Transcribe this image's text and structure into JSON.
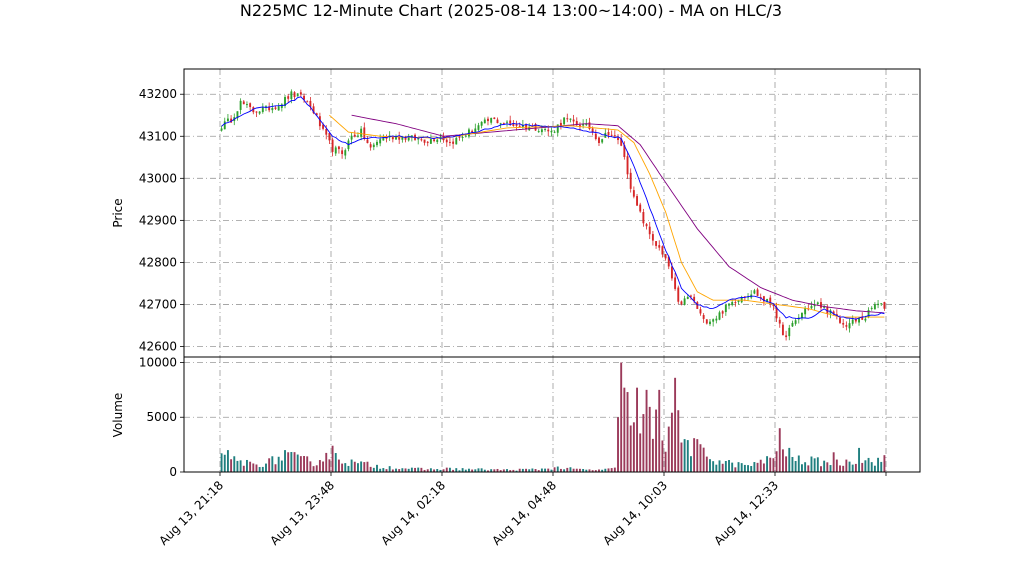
{
  "chart_data": {
    "type": "candlestick",
    "title": "N225MC 12-Minute Chart (2025-08-14 13:00~14:00) - MA on HLC/3",
    "price_panel": {
      "ylabel": "Price",
      "ylim": [
        42575,
        43260
      ],
      "yticks": [
        42600,
        42700,
        42800,
        42900,
        43000,
        43100,
        43200
      ]
    },
    "volume_panel": {
      "ylabel": "Volume",
      "ylim": [
        0,
        10500
      ],
      "yticks": [
        0,
        5000,
        10000
      ]
    },
    "x_axis": {
      "bar_count": 210,
      "tick_indices": [
        0,
        35,
        70,
        105,
        140,
        175,
        210
      ],
      "tick_labels": [
        "Aug 13, 21:18",
        "Aug 13, 23:48",
        "Aug 14, 02:18",
        "Aug 14, 04:48",
        "Aug 14, 10:03",
        "Aug 14, 12:33",
        ""
      ]
    },
    "grid": true,
    "colors": {
      "up": "#2ca02c",
      "down": "#d62728",
      "vol_up": "#1f7f7f",
      "vol_down": "#9b3a5a",
      "ma_short": "#0000ff",
      "ma_mid": "#ffa500",
      "ma_long": "#800080"
    },
    "close_anchors": [
      [
        0,
        43125
      ],
      [
        3,
        43140
      ],
      [
        6,
        43180
      ],
      [
        10,
        43160
      ],
      [
        14,
        43165
      ],
      [
        18,
        43175
      ],
      [
        22,
        43200
      ],
      [
        26,
        43190
      ],
      [
        29,
        43160
      ],
      [
        32,
        43110
      ],
      [
        35,
        43070
      ],
      [
        38,
        43060
      ],
      [
        41,
        43100
      ],
      [
        44,
        43110
      ],
      [
        47,
        43070
      ],
      [
        50,
        43095
      ],
      [
        55,
        43100
      ],
      [
        60,
        43095
      ],
      [
        65,
        43090
      ],
      [
        69,
        43100
      ],
      [
        72,
        43085
      ],
      [
        76,
        43100
      ],
      [
        80,
        43120
      ],
      [
        85,
        43140
      ],
      [
        90,
        43130
      ],
      [
        95,
        43125
      ],
      [
        100,
        43120
      ],
      [
        104,
        43110
      ],
      [
        108,
        43140
      ],
      [
        112,
        43130
      ],
      [
        116,
        43120
      ],
      [
        119,
        43090
      ],
      [
        122,
        43110
      ],
      [
        126,
        43080
      ],
      [
        130,
        42950
      ],
      [
        134,
        42880
      ],
      [
        138,
        42830
      ],
      [
        141,
        42790
      ],
      [
        144,
        42700
      ],
      [
        148,
        42720
      ],
      [
        152,
        42660
      ],
      [
        156,
        42670
      ],
      [
        160,
        42700
      ],
      [
        164,
        42720
      ],
      [
        168,
        42730
      ],
      [
        171,
        42710
      ],
      [
        174,
        42700
      ],
      [
        177,
        42620
      ],
      [
        180,
        42650
      ],
      [
        184,
        42690
      ],
      [
        188,
        42700
      ],
      [
        192,
        42680
      ],
      [
        196,
        42650
      ],
      [
        200,
        42660
      ],
      [
        203,
        42670
      ],
      [
        206,
        42700
      ],
      [
        209,
        42695
      ]
    ],
    "ma_short_anchors": [
      [
        0,
        43125
      ],
      [
        10,
        43165
      ],
      [
        20,
        43175
      ],
      [
        25,
        43195
      ],
      [
        30,
        43150
      ],
      [
        35,
        43100
      ],
      [
        40,
        43080
      ],
      [
        45,
        43095
      ],
      [
        55,
        43100
      ],
      [
        70,
        43095
      ],
      [
        80,
        43110
      ],
      [
        90,
        43130
      ],
      [
        100,
        43125
      ],
      [
        110,
        43120
      ],
      [
        120,
        43105
      ],
      [
        126,
        43095
      ],
      [
        130,
        43030
      ],
      [
        135,
        42930
      ],
      [
        140,
        42830
      ],
      [
        145,
        42740
      ],
      [
        150,
        42700
      ],
      [
        155,
        42690
      ],
      [
        160,
        42710
      ],
      [
        168,
        42720
      ],
      [
        174,
        42700
      ],
      [
        178,
        42670
      ],
      [
        185,
        42665
      ],
      [
        190,
        42690
      ],
      [
        195,
        42670
      ],
      [
        200,
        42665
      ],
      [
        209,
        42680
      ]
    ],
    "ma_mid_anchors": [
      [
        34,
        43150
      ],
      [
        40,
        43110
      ],
      [
        50,
        43100
      ],
      [
        70,
        43095
      ],
      [
        90,
        43120
      ],
      [
        110,
        43125
      ],
      [
        125,
        43115
      ],
      [
        130,
        43085
      ],
      [
        135,
        43010
      ],
      [
        140,
        42920
      ],
      [
        145,
        42800
      ],
      [
        150,
        42730
      ],
      [
        155,
        42710
      ],
      [
        165,
        42710
      ],
      [
        175,
        42700
      ],
      [
        185,
        42690
      ],
      [
        195,
        42670
      ],
      [
        209,
        42670
      ]
    ],
    "ma_long_anchors": [
      [
        41,
        43150
      ],
      [
        55,
        43130
      ],
      [
        70,
        43100
      ],
      [
        85,
        43110
      ],
      [
        100,
        43120
      ],
      [
        115,
        43130
      ],
      [
        125,
        43125
      ],
      [
        132,
        43080
      ],
      [
        140,
        42990
      ],
      [
        150,
        42880
      ],
      [
        160,
        42790
      ],
      [
        170,
        42740
      ],
      [
        180,
        42710
      ],
      [
        190,
        42695
      ],
      [
        200,
        42685
      ],
      [
        209,
        42680
      ]
    ],
    "volume_anchors": [
      [
        0,
        1200
      ],
      [
        5,
        1000
      ],
      [
        10,
        700
      ],
      [
        15,
        900
      ],
      [
        20,
        1500
      ],
      [
        25,
        1100
      ],
      [
        30,
        900
      ],
      [
        33,
        1600
      ],
      [
        35,
        1800
      ],
      [
        40,
        900
      ],
      [
        45,
        700
      ],
      [
        50,
        500
      ],
      [
        55,
        400
      ],
      [
        60,
        300
      ],
      [
        65,
        250
      ],
      [
        70,
        300
      ],
      [
        80,
        250
      ],
      [
        90,
        200
      ],
      [
        100,
        250
      ],
      [
        105,
        400
      ],
      [
        110,
        300
      ],
      [
        115,
        200
      ],
      [
        120,
        200
      ],
      [
        124,
        300
      ],
      [
        125,
        4200
      ],
      [
        126,
        7000
      ],
      [
        128,
        6500
      ],
      [
        130,
        4500
      ],
      [
        132,
        3500
      ],
      [
        134,
        5500
      ],
      [
        136,
        4000
      ],
      [
        138,
        4500
      ],
      [
        140,
        3000
      ],
      [
        142,
        6500
      ],
      [
        143,
        7800
      ],
      [
        145,
        3000
      ],
      [
        150,
        2000
      ],
      [
        155,
        1200
      ],
      [
        160,
        800
      ],
      [
        165,
        600
      ],
      [
        170,
        800
      ],
      [
        175,
        1800
      ],
      [
        176,
        3000
      ],
      [
        180,
        1200
      ],
      [
        185,
        1000
      ],
      [
        190,
        900
      ],
      [
        195,
        800
      ],
      [
        200,
        1200
      ],
      [
        205,
        1000
      ],
      [
        209,
        1100
      ]
    ],
    "volume_spikes": [
      [
        2,
        2000
      ],
      [
        20,
        2000
      ],
      [
        35,
        2400
      ],
      [
        125,
        5000
      ],
      [
        126,
        10000
      ],
      [
        127,
        7700
      ],
      [
        128,
        7300
      ],
      [
        131,
        7700
      ],
      [
        134,
        7500
      ],
      [
        138,
        7500
      ],
      [
        143,
        8600
      ],
      [
        150,
        3000
      ],
      [
        176,
        4000
      ],
      [
        179,
        2200
      ],
      [
        193,
        1800
      ],
      [
        201,
        2200
      ]
    ]
  }
}
